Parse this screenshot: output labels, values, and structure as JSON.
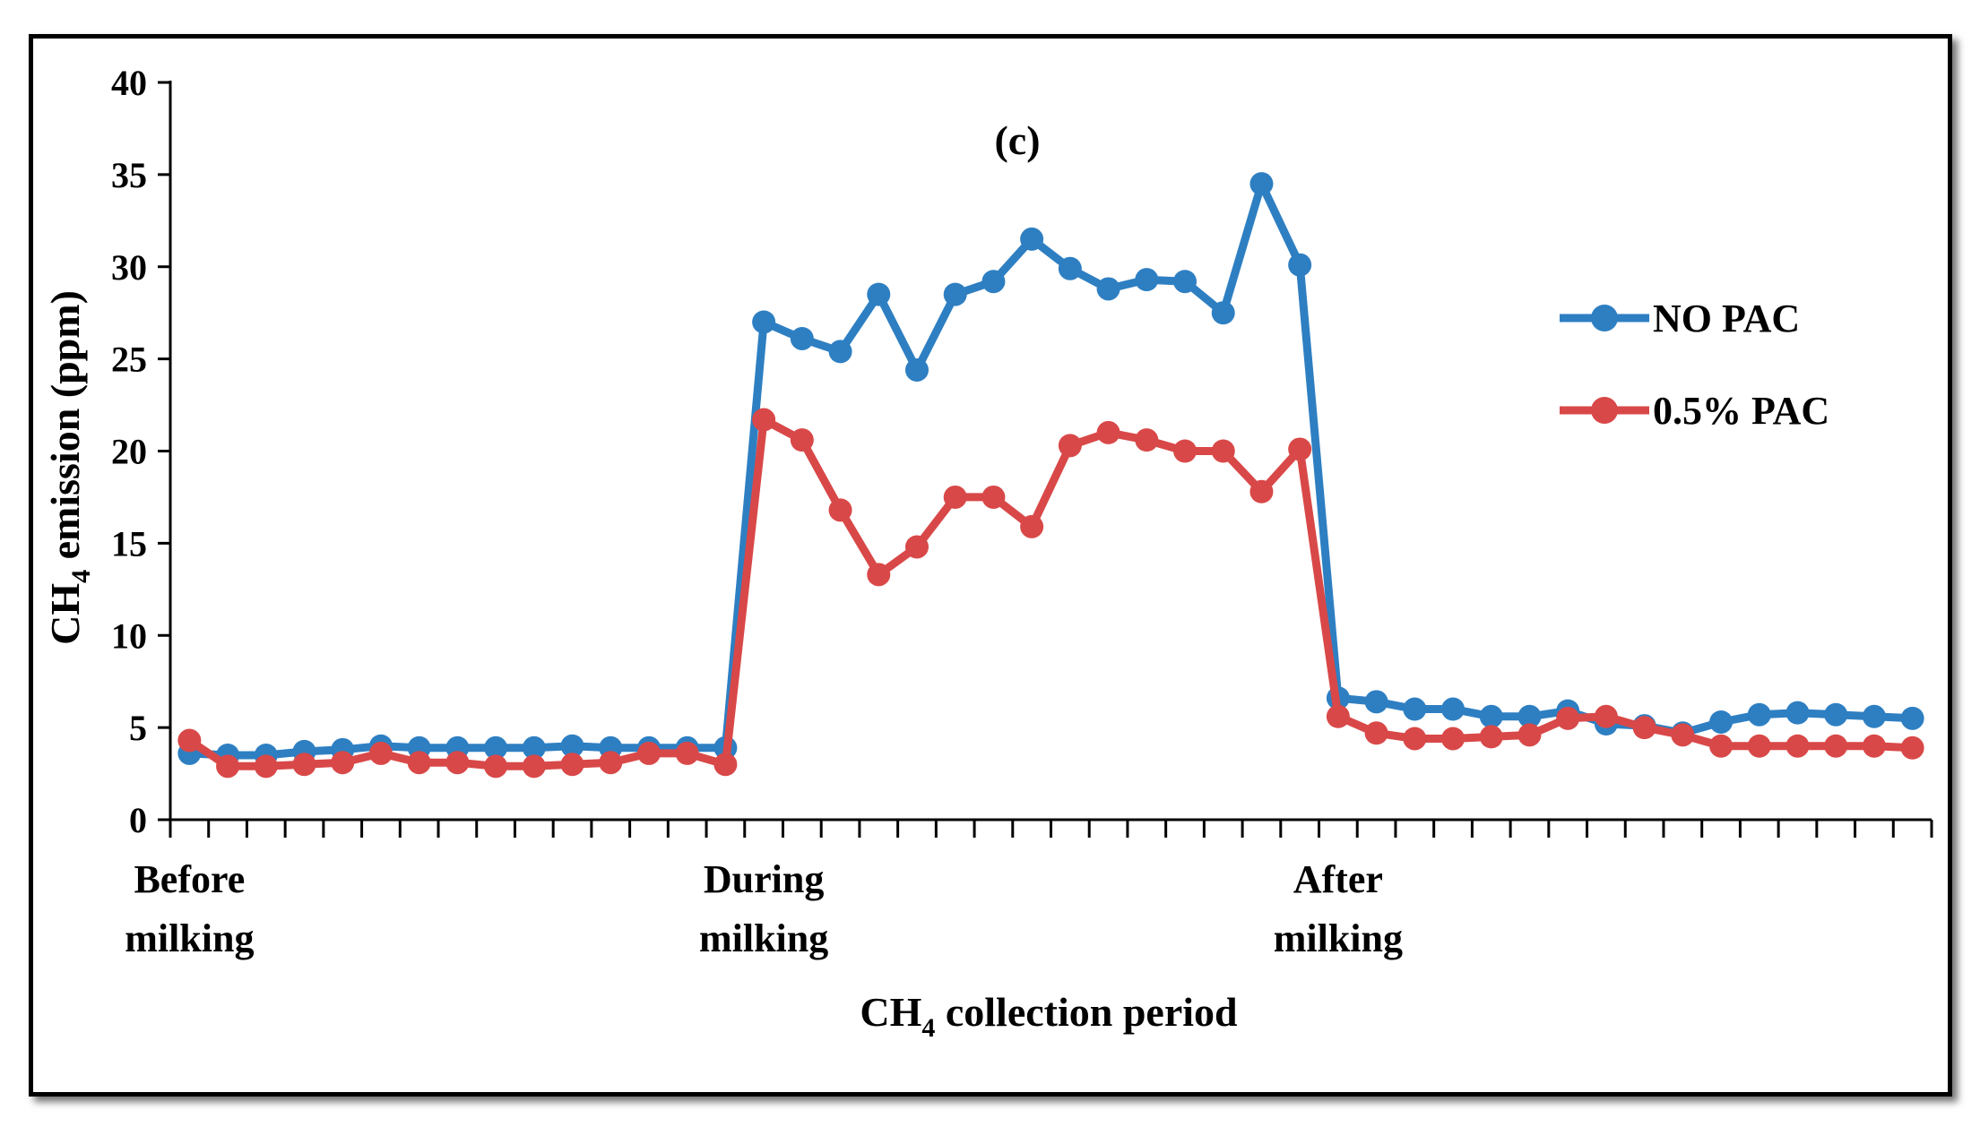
{
  "chart_data": {
    "type": "line",
    "title": "(c)",
    "ylabel_main": "CH",
    "ylabel_sub": "4",
    "ylabel_rest": " emission (ppm)",
    "xlabel_main": "CH",
    "xlabel_sub": "4",
    "xlabel_rest": " collection period",
    "ylim": [
      0,
      40
    ],
    "yticks": [
      "0",
      "5",
      "10",
      "15",
      "20",
      "25",
      "30",
      "35",
      "40"
    ],
    "category_labels": [
      {
        "line1": "Before",
        "line2": "milking",
        "index": 0
      },
      {
        "line1": "During",
        "line2": "milking",
        "index": 15
      },
      {
        "line1": "After",
        "line2": "milking",
        "index": 30
      }
    ],
    "n_points": 46,
    "legend_position": "right",
    "series": [
      {
        "name": "NO PAC",
        "color": "#2e7fc2",
        "values": [
          3.6,
          3.5,
          3.5,
          3.7,
          3.8,
          4.0,
          3.9,
          3.9,
          3.9,
          3.9,
          4.0,
          3.9,
          3.9,
          3.9,
          3.9,
          27.0,
          26.1,
          25.4,
          28.5,
          24.4,
          28.5,
          29.2,
          31.5,
          29.9,
          28.8,
          29.3,
          29.2,
          27.5,
          34.5,
          30.1,
          6.6,
          6.4,
          6.0,
          6.0,
          5.6,
          5.6,
          5.9,
          5.2,
          5.1,
          4.7,
          5.3,
          5.7,
          5.8,
          5.7,
          5.6,
          5.5
        ]
      },
      {
        "name": "0.5% PAC",
        "color": "#d94848",
        "values": [
          4.3,
          2.9,
          2.9,
          3.0,
          3.1,
          3.6,
          3.1,
          3.1,
          2.9,
          2.9,
          3.0,
          3.1,
          3.6,
          3.6,
          3.0,
          21.7,
          20.6,
          16.8,
          13.3,
          14.8,
          17.5,
          17.5,
          15.9,
          20.3,
          21.0,
          20.6,
          20.0,
          20.0,
          17.8,
          20.1,
          5.6,
          4.7,
          4.4,
          4.4,
          4.5,
          4.6,
          5.5,
          5.6,
          5.0,
          4.6,
          4.0,
          4.0,
          4.0,
          4.0,
          4.0,
          3.9
        ]
      }
    ]
  }
}
